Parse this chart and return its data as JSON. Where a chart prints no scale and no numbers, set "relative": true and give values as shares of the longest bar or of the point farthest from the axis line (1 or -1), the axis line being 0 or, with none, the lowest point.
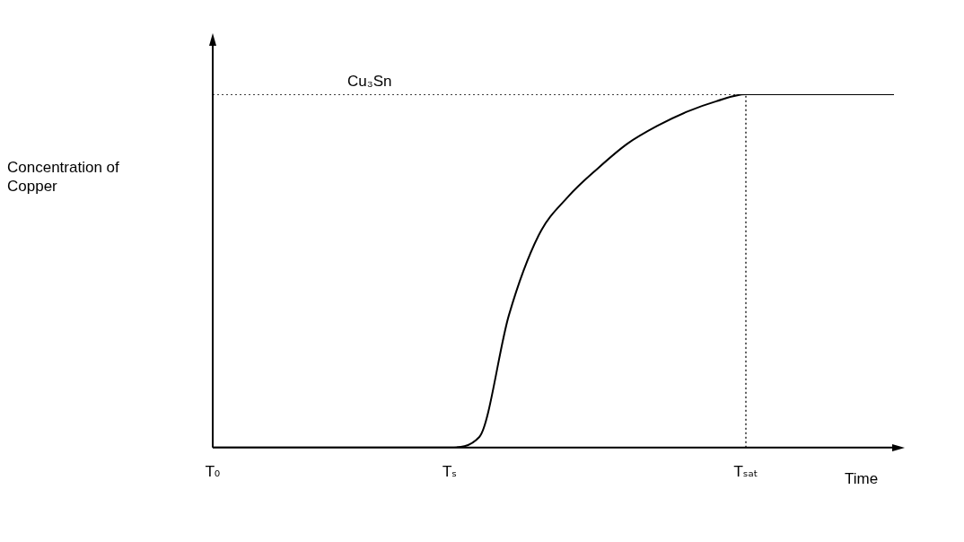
{
  "chart_data": {
    "type": "line",
    "relative": true,
    "xlabel": "Time",
    "annotations": [
      "Concentration of Copper"
    ],
    "categories": [
      "T₀",
      null,
      null,
      null,
      null,
      null,
      null,
      null,
      "Tₛ",
      null,
      null,
      null,
      null,
      null,
      null,
      null,
      null,
      null,
      "Tₛₐₜ",
      null,
      null,
      null,
      null,
      null
    ],
    "series": [
      {
        "color": "#000000",
        "values": [
          0,
          0,
          0,
          0,
          0,
          0,
          0,
          0,
          0,
          0.03,
          0.375,
          0.6,
          0.71,
          0.79,
          0.86,
          0.91,
          0.95,
          0.98,
          1,
          1,
          1,
          1,
          1,
          1
        ]
      },
      {
        "name": "Cu₃Sn",
        "color": "#000000",
        "line_style": "dotted",
        "values": [
          1,
          1,
          1,
          1,
          1,
          1,
          1,
          1,
          1,
          1,
          1,
          1,
          1,
          1,
          1,
          1,
          1,
          1,
          1,
          null,
          null,
          null,
          null,
          null
        ]
      }
    ],
    "ref_lines": [
      {
        "axis": "x",
        "value": "Tₛₐₜ",
        "line_style": "dotted",
        "color": "#000000"
      }
    ],
    "marker": "none",
    "line_style": "solid",
    "grid": false,
    "legend": false
  }
}
